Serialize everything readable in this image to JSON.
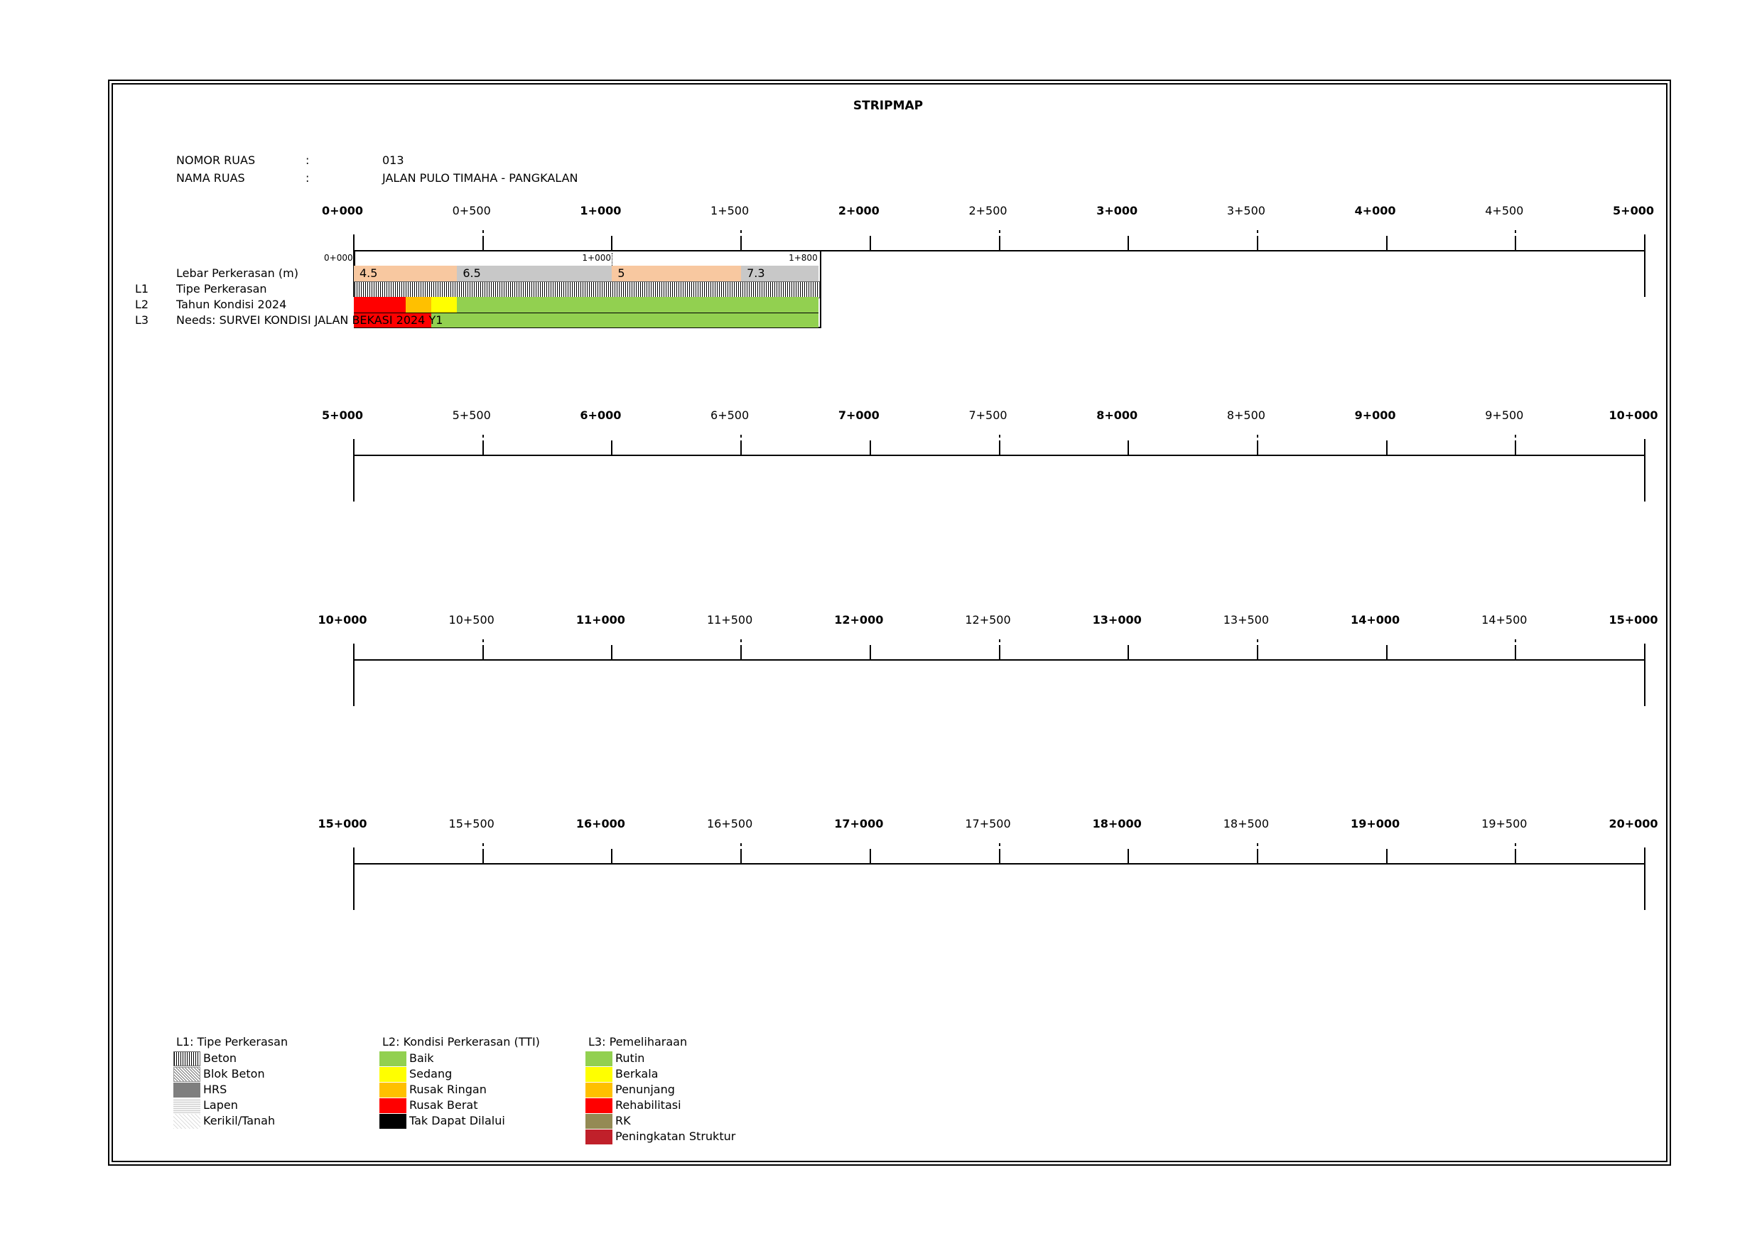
{
  "title": "STRIPMAP",
  "info": {
    "nomor_label": "NOMOR RUAS",
    "nomor_sep": ":",
    "nomor_value": "013",
    "nama_label": "NAMA RUAS",
    "nama_sep": ":",
    "nama_value": "JALAN PULO TIMAHA - PANGKALAN"
  },
  "rows": [
    {
      "labels": [
        "0+000",
        "0+500",
        "1+000",
        "1+500",
        "2+000",
        "2+500",
        "3+000",
        "3+500",
        "4+000",
        "4+500",
        "5+000"
      ]
    },
    {
      "labels": [
        "5+000",
        "5+500",
        "6+000",
        "6+500",
        "7+000",
        "7+500",
        "8+000",
        "8+500",
        "9+000",
        "9+500",
        "10+000"
      ]
    },
    {
      "labels": [
        "10+000",
        "10+500",
        "11+000",
        "11+500",
        "12+000",
        "12+500",
        "13+000",
        "13+500",
        "14+000",
        "14+500",
        "15+000"
      ]
    },
    {
      "labels": [
        "15+000",
        "15+500",
        "16+000",
        "16+500",
        "17+000",
        "17+500",
        "18+000",
        "18+500",
        "19+000",
        "19+500",
        "20+000"
      ]
    }
  ],
  "segment": {
    "start_label": "0+000",
    "mid_label": "1+000",
    "end_label": "1+800",
    "length_km": 1.8,
    "row_labels": {
      "width": "Lebar Perkerasan (m)",
      "l1_code": "L1",
      "l1": "Tipe Perkerasan",
      "l2_code": "L2",
      "l2": "Tahun Kondisi 2024",
      "l3_code": "L3",
      "l3": "Needs: SURVEI KONDISI JALAN BEKASI 2024 Y1"
    },
    "widths": [
      {
        "from": 0.0,
        "to": 0.4,
        "value": "4.5",
        "color": "#f8c8a0"
      },
      {
        "from": 0.4,
        "to": 1.0,
        "value": "6.5",
        "color": "#c8c8c8"
      },
      {
        "from": 1.0,
        "to": 1.5,
        "value": "5",
        "color": "#f8c8a0"
      },
      {
        "from": 1.5,
        "to": 1.8,
        "value": "7.3",
        "color": "#c8c8c8"
      }
    ],
    "pavement_type": "Beton",
    "condition": [
      {
        "from": 0.0,
        "to": 0.2,
        "color": "#ff0000"
      },
      {
        "from": 0.2,
        "to": 0.3,
        "color": "#ffc000"
      },
      {
        "from": 0.3,
        "to": 0.4,
        "color": "#ffff00"
      },
      {
        "from": 0.4,
        "to": 1.8,
        "color": "#92d050"
      }
    ],
    "needs": [
      {
        "from": 0.0,
        "to": 0.3,
        "color": "#ff0000"
      },
      {
        "from": 0.3,
        "to": 1.8,
        "color": "#92d050"
      }
    ]
  },
  "legend": {
    "l1_title": "L1: Tipe Perkerasan",
    "l1": [
      {
        "label": "Beton",
        "pattern": "beton"
      },
      {
        "label": "Blok Beton",
        "pattern": "blok"
      },
      {
        "label": "HRS",
        "pattern": "hrs"
      },
      {
        "label": "Lapen",
        "pattern": "lapen"
      },
      {
        "label": "Kerikil/Tanah",
        "pattern": "kerikil"
      }
    ],
    "l2_title": "L2: Kondisi Perkerasan (TTI)",
    "l2": [
      {
        "label": "Baik",
        "color": "#92d050"
      },
      {
        "label": "Sedang",
        "color": "#ffff00"
      },
      {
        "label": "Rusak Ringan",
        "color": "#ffc000"
      },
      {
        "label": "Rusak Berat",
        "color": "#ff0000"
      },
      {
        "label": "Tak Dapat Dilalui",
        "color": "#000000"
      }
    ],
    "l3_title": "L3: Pemeliharaan",
    "l3": [
      {
        "label": "Rutin",
        "color": "#92d050"
      },
      {
        "label": "Berkala",
        "color": "#ffff00"
      },
      {
        "label": "Penunjang",
        "color": "#ffc000"
      },
      {
        "label": "Rehabilitasi",
        "color": "#ff0000"
      },
      {
        "label": "RK",
        "color": "#948a54"
      },
      {
        "label": "Peningkatan Struktur",
        "color": "#c0202a"
      }
    ]
  }
}
